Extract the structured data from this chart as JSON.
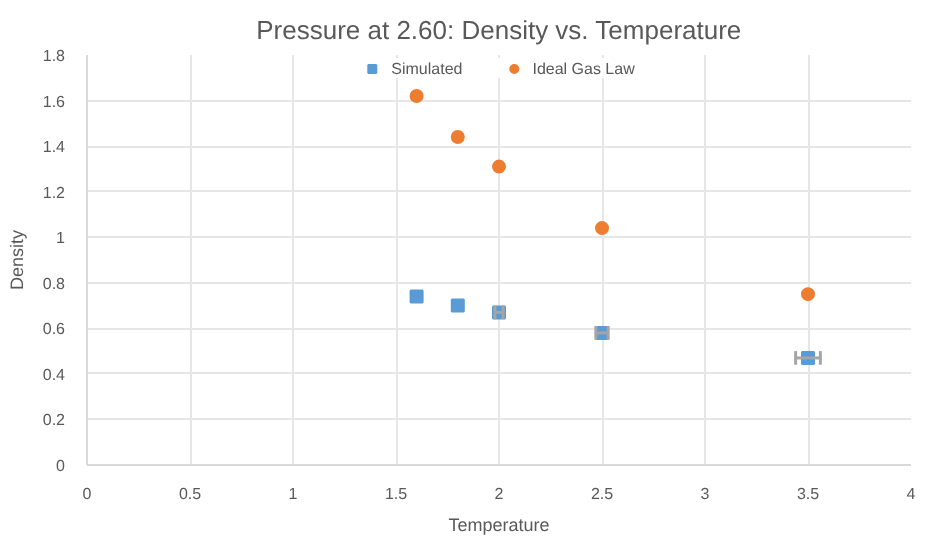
{
  "chart_data": {
    "type": "scatter",
    "title": "Pressure at 2.60: Density vs. Temperature",
    "xlabel": "Temperature",
    "ylabel": "Density",
    "xlim": [
      0,
      4
    ],
    "xticks": [
      0,
      0.5,
      1,
      1.5,
      2,
      2.5,
      3,
      3.5,
      4
    ],
    "ylim": [
      0,
      1.8
    ],
    "yticks": [
      0,
      0.2,
      0.4,
      0.6,
      0.8,
      1,
      1.2,
      1.4,
      1.6,
      1.8
    ],
    "grid": true,
    "legend": "top",
    "series": [
      {
        "name": "Simulated",
        "color": "#5b9bd5",
        "marker": "square",
        "x": [
          1.6,
          1.8,
          2.0,
          2.5,
          3.5
        ],
        "values": [
          0.74,
          0.7,
          0.67,
          0.58,
          0.47
        ],
        "xerrors": [
          null,
          null,
          0.02,
          0.03,
          0.06
        ]
      },
      {
        "name": "Ideal Gas Law",
        "color": "#ed7d31",
        "marker": "circle",
        "x": [
          1.6,
          1.8,
          2.0,
          2.5,
          3.5
        ],
        "values": [
          1.62,
          1.44,
          1.31,
          1.04,
          0.75
        ]
      }
    ]
  }
}
